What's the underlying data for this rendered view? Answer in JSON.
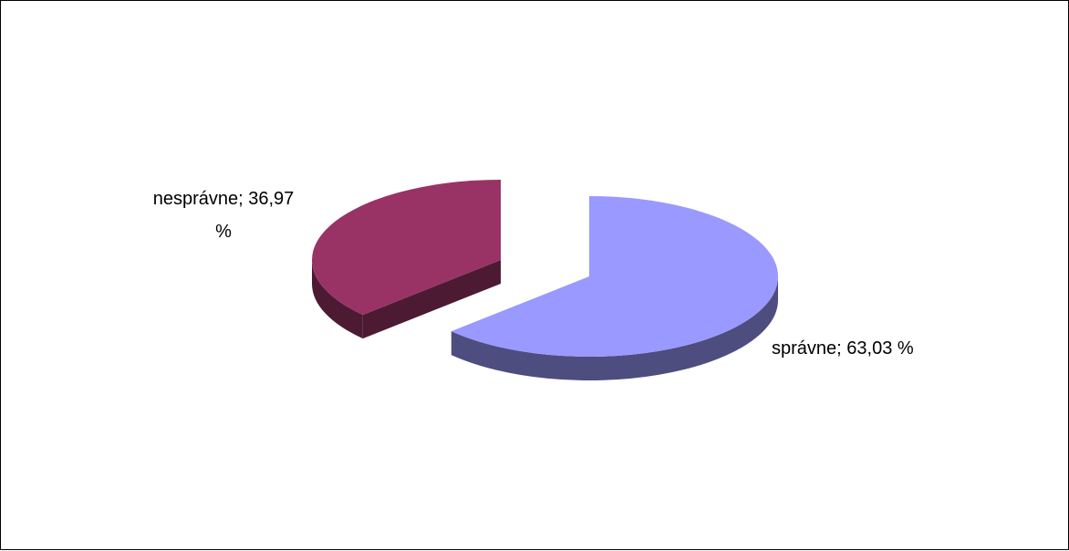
{
  "chart_data": {
    "type": "pie",
    "style": "3d-exploded",
    "legend": "none",
    "slices": [
      {
        "label": "správne",
        "value": 63.03,
        "label_text": "správne; 63,03 %",
        "top_color": "#9999ff",
        "side_color": "#4d4d80"
      },
      {
        "label": "nesprávne",
        "value": 36.97,
        "label_line1": "nesprávne; 36,97",
        "label_line2": "%",
        "top_color": "#993366",
        "side_color": "#4d1a33"
      }
    ]
  }
}
